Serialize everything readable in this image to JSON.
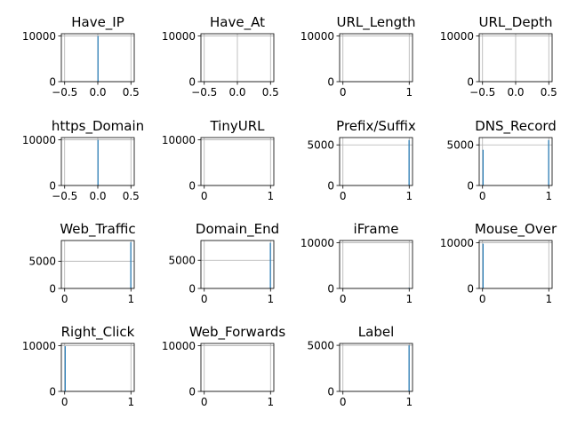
{
  "chart_data": [
    {
      "type": "bar",
      "title": "Have_IP",
      "xlim": [
        -0.55,
        0.55
      ],
      "xticks": [
        -0.5,
        0,
        0.5
      ],
      "xtick_labels": [
        "−0.5",
        "0.0",
        "0.5"
      ],
      "ylim": [
        0,
        10500
      ],
      "yticks": [
        0,
        10000
      ],
      "ytick_labels": [
        "0",
        "10000"
      ],
      "bins": [
        {
          "x0": -0.005,
          "x1": 0.005,
          "count": 10000
        }
      ],
      "color": "#1f77b4",
      "grid": true
    },
    {
      "type": "bar",
      "title": "Have_At",
      "xlim": [
        -0.55,
        0.55
      ],
      "xticks": [
        -0.5,
        0,
        0.5
      ],
      "xtick_labels": [
        "−0.5",
        "0.0",
        "0.5"
      ],
      "ylim": [
        0,
        10500
      ],
      "yticks": [
        0,
        10000
      ],
      "ytick_labels": [
        "0",
        "10000"
      ],
      "bins": [],
      "color": "#1f77b4",
      "grid": true
    },
    {
      "type": "bar",
      "title": "URL_Length",
      "xlim": [
        -0.05,
        1.05
      ],
      "xticks": [
        0,
        1
      ],
      "xtick_labels": [
        "0",
        "1"
      ],
      "ylim": [
        0,
        10500
      ],
      "yticks": [
        0,
        10000
      ],
      "ytick_labels": [
        "0",
        "10000"
      ],
      "bins": [],
      "color": "#1f77b4",
      "grid": true
    },
    {
      "type": "bar",
      "title": "URL_Depth",
      "xlim": [
        -0.55,
        0.55
      ],
      "xticks": [
        -0.5,
        0,
        0.5
      ],
      "xtick_labels": [
        "−0.5",
        "0.0",
        "0.5"
      ],
      "ylim": [
        0,
        10500
      ],
      "yticks": [
        0,
        10000
      ],
      "ytick_labels": [
        "0",
        "10000"
      ],
      "bins": [],
      "color": "#1f77b4",
      "grid": true
    },
    {
      "type": "bar",
      "title": "https_Domain",
      "xlim": [
        -0.55,
        0.55
      ],
      "xticks": [
        -0.5,
        0,
        0.5
      ],
      "xtick_labels": [
        "−0.5",
        "0.0",
        "0.5"
      ],
      "ylim": [
        0,
        10500
      ],
      "yticks": [
        0,
        10000
      ],
      "ytick_labels": [
        "0",
        "10000"
      ],
      "bins": [
        {
          "x0": -0.005,
          "x1": 0.005,
          "count": 10000
        }
      ],
      "color": "#1f77b4",
      "grid": true
    },
    {
      "type": "bar",
      "title": "TinyURL",
      "xlim": [
        -0.05,
        1.05
      ],
      "xticks": [
        0,
        1
      ],
      "xtick_labels": [
        "0",
        "1"
      ],
      "ylim": [
        0,
        10500
      ],
      "yticks": [
        0,
        10000
      ],
      "ytick_labels": [
        "0",
        "10000"
      ],
      "bins": [],
      "color": "#1f77b4",
      "grid": true
    },
    {
      "type": "bar",
      "title": "Prefix/Suffix",
      "xlim": [
        -0.05,
        1.05
      ],
      "xticks": [
        0,
        1
      ],
      "xtick_labels": [
        "0",
        "1"
      ],
      "ylim": [
        0,
        5900
      ],
      "yticks": [
        0,
        5000
      ],
      "ytick_labels": [
        "0",
        "5000"
      ],
      "bins": [
        {
          "x0": 0.99,
          "x1": 1.0,
          "count": 5600
        }
      ],
      "color": "#1f77b4",
      "grid": true
    },
    {
      "type": "bar",
      "title": "DNS_Record",
      "xlim": [
        -0.05,
        1.05
      ],
      "xticks": [
        0,
        1
      ],
      "xtick_labels": [
        "0",
        "1"
      ],
      "ylim": [
        0,
        5900
      ],
      "yticks": [
        0,
        5000
      ],
      "ytick_labels": [
        "0",
        "5000"
      ],
      "bins": [
        {
          "x0": 0.0,
          "x1": 0.01,
          "count": 4400
        },
        {
          "x0": 0.99,
          "x1": 1.0,
          "count": 5600
        }
      ],
      "color": "#1f77b4",
      "grid": true
    },
    {
      "type": "bar",
      "title": "Web_Traffic",
      "xlim": [
        -0.05,
        1.05
      ],
      "xticks": [
        0,
        1
      ],
      "xtick_labels": [
        "0",
        "1"
      ],
      "ylim": [
        0,
        8800
      ],
      "yticks": [
        0,
        5000
      ],
      "ytick_labels": [
        "0",
        "5000"
      ],
      "bins": [
        {
          "x0": 0.99,
          "x1": 1.0,
          "count": 8500
        }
      ],
      "color": "#1f77b4",
      "grid": true
    },
    {
      "type": "bar",
      "title": "Domain_End",
      "xlim": [
        -0.05,
        1.05
      ],
      "xticks": [
        0,
        1
      ],
      "xtick_labels": [
        "0",
        "1"
      ],
      "ylim": [
        0,
        8500
      ],
      "yticks": [
        0,
        5000
      ],
      "ytick_labels": [
        "0",
        "5000"
      ],
      "bins": [
        {
          "x0": 0.99,
          "x1": 1.0,
          "count": 8100
        }
      ],
      "color": "#1f77b4",
      "grid": true
    },
    {
      "type": "bar",
      "title": "iFrame",
      "xlim": [
        -0.05,
        1.05
      ],
      "xticks": [
        0,
        1
      ],
      "xtick_labels": [
        "0",
        "1"
      ],
      "ylim": [
        0,
        10500
      ],
      "yticks": [
        0,
        10000
      ],
      "ytick_labels": [
        "0",
        "10000"
      ],
      "bins": [
        {
          "x0": 0.99,
          "x1": 1.0,
          "count": 150
        }
      ],
      "color": "#1f77b4",
      "grid": true
    },
    {
      "type": "bar",
      "title": "Mouse_Over",
      "xlim": [
        -0.05,
        1.05
      ],
      "xticks": [
        0,
        1
      ],
      "xtick_labels": [
        "0",
        "1"
      ],
      "ylim": [
        0,
        10500
      ],
      "yticks": [
        0,
        10000
      ],
      "ytick_labels": [
        "0",
        "10000"
      ],
      "bins": [
        {
          "x0": 0.0,
          "x1": 0.01,
          "count": 9800
        }
      ],
      "color": "#1f77b4",
      "grid": true
    },
    {
      "type": "bar",
      "title": "Right_Click",
      "xlim": [
        -0.05,
        1.05
      ],
      "xticks": [
        0,
        1
      ],
      "xtick_labels": [
        "0",
        "1"
      ],
      "ylim": [
        0,
        10500
      ],
      "yticks": [
        0,
        10000
      ],
      "ytick_labels": [
        "0",
        "10000"
      ],
      "bins": [
        {
          "x0": 0.0,
          "x1": 0.01,
          "count": 9900
        }
      ],
      "color": "#1f77b4",
      "grid": true
    },
    {
      "type": "bar",
      "title": "Web_Forwards",
      "xlim": [
        -0.05,
        1.05
      ],
      "xticks": [
        0,
        1
      ],
      "xtick_labels": [
        "0",
        "1"
      ],
      "ylim": [
        0,
        10500
      ],
      "yticks": [
        0,
        10000
      ],
      "ytick_labels": [
        "0",
        "10000"
      ],
      "bins": [],
      "color": "#1f77b4",
      "grid": true
    },
    {
      "type": "bar",
      "title": "Label",
      "xlim": [
        -0.05,
        1.05
      ],
      "xticks": [
        0,
        1
      ],
      "xtick_labels": [
        "0",
        "1"
      ],
      "ylim": [
        0,
        5200
      ],
      "yticks": [
        0,
        5000
      ],
      "ytick_labels": [
        "0",
        "5000"
      ],
      "bins": [
        {
          "x0": 0.99,
          "x1": 1.0,
          "count": 5000
        }
      ],
      "color": "#1f77b4",
      "grid": true
    }
  ]
}
